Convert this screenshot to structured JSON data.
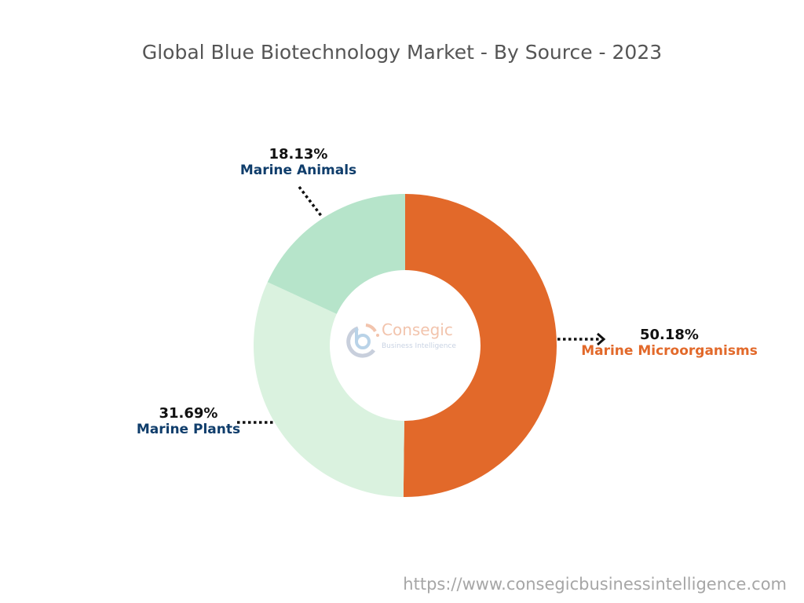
{
  "title": "Global Blue Biotechnology Market - By Source - 2023",
  "footer_url": "https://www.consegicbusinessintelligence.com",
  "logo": {
    "name": "Consegic",
    "tagline": "Business Intelligence"
  },
  "colors": {
    "marine_microorganisms": "#e2692a",
    "marine_plants": "#daf2df",
    "marine_animals": "#b6e4ca",
    "label_blue": "#0f3d6b",
    "label_orange": "#e2692a"
  },
  "labels": {
    "animals": {
      "pct": "18.13%",
      "name": "Marine Animals"
    },
    "microorganisms": {
      "pct": "50.18%",
      "name": "Marine Microorganisms"
    },
    "plants": {
      "pct": "31.69%",
      "name": "Marine Plants"
    }
  },
  "chart_data": {
    "type": "pie",
    "subtype": "donut",
    "title": "Global Blue Biotechnology Market - By Source - 2023",
    "categories": [
      "Marine Microorganisms",
      "Marine Plants",
      "Marine Animals"
    ],
    "values": [
      50.18,
      31.69,
      18.13
    ],
    "unit": "%",
    "colors": [
      "#e2692a",
      "#daf2df",
      "#b6e4ca"
    ],
    "start_angle": "top, clockwise",
    "legend": "none (callout labels)"
  }
}
